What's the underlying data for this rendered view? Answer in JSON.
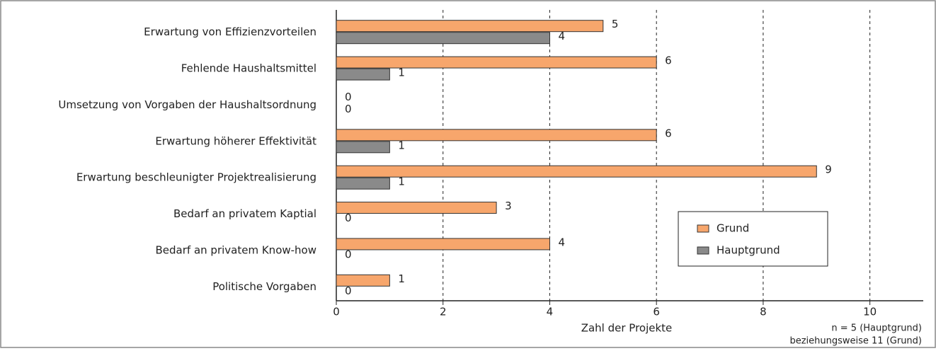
{
  "chart_data": {
    "type": "hbar",
    "categories": [
      "Erwartung von Effizienzvorteilen",
      "Fehlende Haushaltsmittel",
      "Umsetzung von Vorgaben der Haushaltsordnung",
      "Erwartung höherer Effektivität",
      "Erwartung beschleunigter Projektrealisierung",
      "Bedarf an privatem Kaptial",
      "Bedarf an privatem Know-how",
      "Politische Vorgaben"
    ],
    "series": [
      {
        "name": "Grund",
        "color": "#f7a66c",
        "values": [
          5,
          6,
          0,
          6,
          9,
          3,
          4,
          1
        ]
      },
      {
        "name": "Hauptgrund",
        "color": "#8a8a8a",
        "values": [
          4,
          1,
          0,
          1,
          1,
          0,
          0,
          0
        ]
      }
    ],
    "xlabel": "Zahl der Projekte",
    "xlim": [
      0,
      11
    ],
    "xticks": [
      0,
      2,
      4,
      6,
      8,
      10
    ],
    "grid": true,
    "legend": "lower right",
    "notes": [
      "n = 5 (Hauptgrund)",
      "beziehungsweise 11 (Grund)"
    ]
  }
}
